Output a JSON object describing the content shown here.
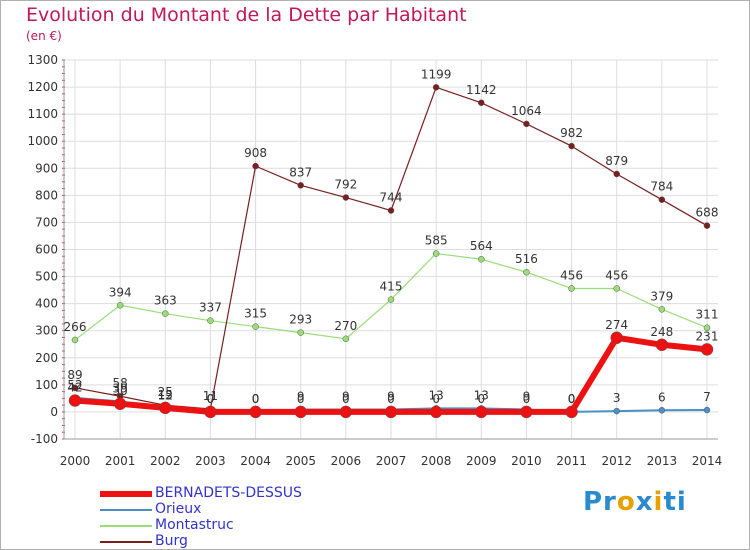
{
  "chart_data": {
    "type": "line",
    "title": "Evolution du Montant de la Dette par Habitant",
    "subtitle": "(en €)",
    "x": [
      "2000",
      "2001",
      "2002",
      "2003",
      "2004",
      "2005",
      "2006",
      "2007",
      "2008",
      "2009",
      "2010",
      "2011",
      "2012",
      "2013",
      "2014"
    ],
    "yticks": [
      "-100",
      "0",
      "100",
      "200",
      "300",
      "400",
      "500",
      "600",
      "700",
      "800",
      "900",
      "1000",
      "1100",
      "1200",
      "1300"
    ],
    "ylim": [
      -100,
      1300
    ],
    "grid": true,
    "legend_position": "bottom-left",
    "series": [
      {
        "name": "BERNADETS-DESSUS",
        "color": "#ee1111",
        "values": [
          42,
          30,
          15,
          0,
          0,
          0,
          0,
          0,
          0,
          0,
          0,
          0,
          274,
          248,
          231
        ]
      },
      {
        "name": "Orieux",
        "color": "#4a90c8",
        "values": [
          52,
          39,
          12,
          0,
          0,
          9,
          9,
          9,
          13,
          13,
          9,
          0,
          3,
          6,
          7
        ]
      },
      {
        "name": "Montastruc",
        "color": "#99dd77",
        "values": [
          266,
          394,
          363,
          337,
          315,
          293,
          270,
          415,
          585,
          564,
          516,
          456,
          456,
          379,
          311
        ]
      },
      {
        "name": "Burg",
        "color": "#7a1e1e",
        "values": [
          89,
          58,
          25,
          11,
          908,
          837,
          792,
          744,
          1199,
          1142,
          1064,
          982,
          879,
          784,
          688
        ]
      }
    ],
    "data_labels": {
      "BERNADETS-DESSUS": [
        "42",
        "30",
        "15",
        "0",
        "0",
        "0",
        "0",
        "0",
        "0",
        "0",
        "0",
        "0",
        "274",
        "248",
        "231"
      ],
      "Orieux": [
        "52",
        "39",
        "12",
        "0",
        "0",
        "9",
        "9",
        "9",
        "13",
        "13",
        "9",
        "0",
        "3",
        "6",
        "7"
      ],
      "Montastruc": [
        "266",
        "394",
        "363",
        "337",
        "315",
        "293",
        "270",
        "415",
        "585",
        "564",
        "516",
        "456",
        "456",
        "379",
        "311"
      ],
      "Burg": [
        "89",
        "58",
        "25",
        "11",
        "908",
        "837",
        "792",
        "744",
        "1199",
        "1142",
        "1064",
        "982",
        "879",
        "784",
        "688"
      ]
    }
  },
  "logo": {
    "parts": [
      "Pr",
      "o",
      "x",
      "i",
      "ti"
    ],
    "colors": [
      "#2a8ad0",
      "#e8a000",
      "#2a8ad0",
      "#e8a000",
      "#2a8ad0"
    ]
  }
}
